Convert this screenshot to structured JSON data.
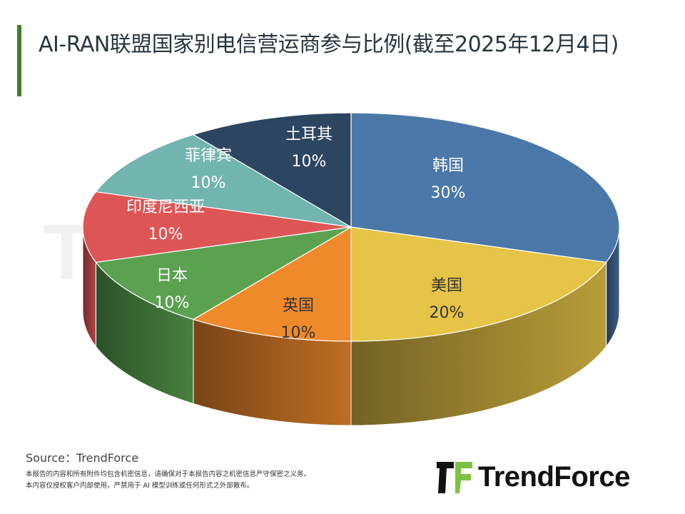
{
  "title": "AI-RAN联盟国家别电信营运商参与比例(截至2025年12月4日)",
  "chart_data": {
    "type": "pie",
    "style": "3d",
    "title": "AI-RAN联盟国家别电信营运商参与比例(截至2025年12月4日)",
    "slices": [
      {
        "label": "韩国",
        "value": 30,
        "display": "30%",
        "color": "#4a78a8"
      },
      {
        "label": "美国",
        "value": 20,
        "display": "20%",
        "color": "#e6c447"
      },
      {
        "label": "英国",
        "value": 10,
        "display": "10%",
        "color": "#ef8a2b"
      },
      {
        "label": "日本",
        "value": 10,
        "display": "10%",
        "color": "#5aa150"
      },
      {
        "label": "印度尼西亚",
        "value": 10,
        "display": "10%",
        "color": "#de5555"
      },
      {
        "label": "菲律宾",
        "value": 10,
        "display": "10%",
        "color": "#72b4ae"
      },
      {
        "label": "土耳其",
        "value": 10,
        "display": "10%",
        "color": "#2c4560"
      }
    ],
    "start_angle": "top",
    "direction": "clockwise",
    "legend": "none"
  },
  "source": "Source：TrendForce",
  "disclaimer": [
    "本报告的内容和所有附件均包含机密信息，请确保对于本报告内容之机密信息严守保密之义务。",
    "本内容仅授权客户内部使用，严禁用于 AI 模型训练或任何形式之外部散布。"
  ],
  "logo": {
    "text": "TrendForce",
    "accent": "#7dc242"
  },
  "watermark": "TrendForce"
}
